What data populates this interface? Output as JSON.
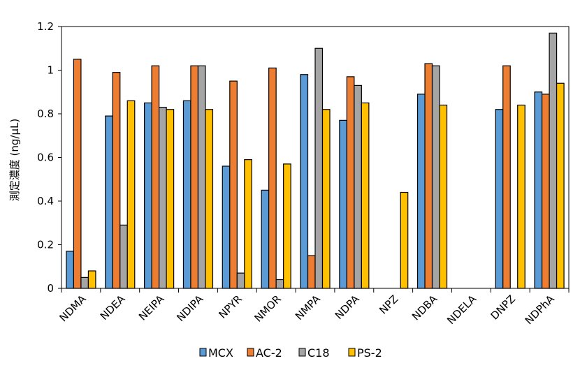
{
  "chart_data": {
    "type": "bar",
    "title": "",
    "xlabel": "",
    "ylabel": "測定濃度 (ng/μL)",
    "ylim": [
      0,
      1.2
    ],
    "yticks": [
      "0",
      "0.2",
      "0.4",
      "0.6",
      "0.8",
      "1",
      "1.2"
    ],
    "grid": false,
    "legend_position": "bottom",
    "categories": [
      "NDMA",
      "NDEA",
      "NEIPA",
      "NDIPA",
      "NPYR",
      "NMOR",
      "NMPA",
      "NDPA",
      "NPZ",
      "NDBA",
      "NDELA",
      "DNPZ",
      "NDPhA"
    ],
    "series": [
      {
        "name": "MCX",
        "color": "#5b9bd5",
        "values": [
          0.17,
          0.79,
          0.85,
          0.86,
          0.56,
          0.45,
          0.98,
          0.77,
          0,
          0.89,
          0,
          0.82,
          0.9
        ]
      },
      {
        "name": "AC-2",
        "color": "#ed7d31",
        "values": [
          1.05,
          0.99,
          1.02,
          1.02,
          0.95,
          1.01,
          0.15,
          0.97,
          0,
          1.03,
          0,
          1.02,
          0.89
        ]
      },
      {
        "name": "C18",
        "color": "#a5a5a5",
        "values": [
          0.05,
          0.29,
          0.83,
          1.02,
          0.07,
          0.04,
          1.1,
          0.93,
          0,
          1.02,
          0,
          0,
          1.17
        ]
      },
      {
        "name": "PS-2",
        "color": "#ffc000",
        "values": [
          0.08,
          0.86,
          0.82,
          0.82,
          0.59,
          0.57,
          0.82,
          0.85,
          0.44,
          0.84,
          0,
          0.84,
          0.94
        ]
      }
    ]
  }
}
